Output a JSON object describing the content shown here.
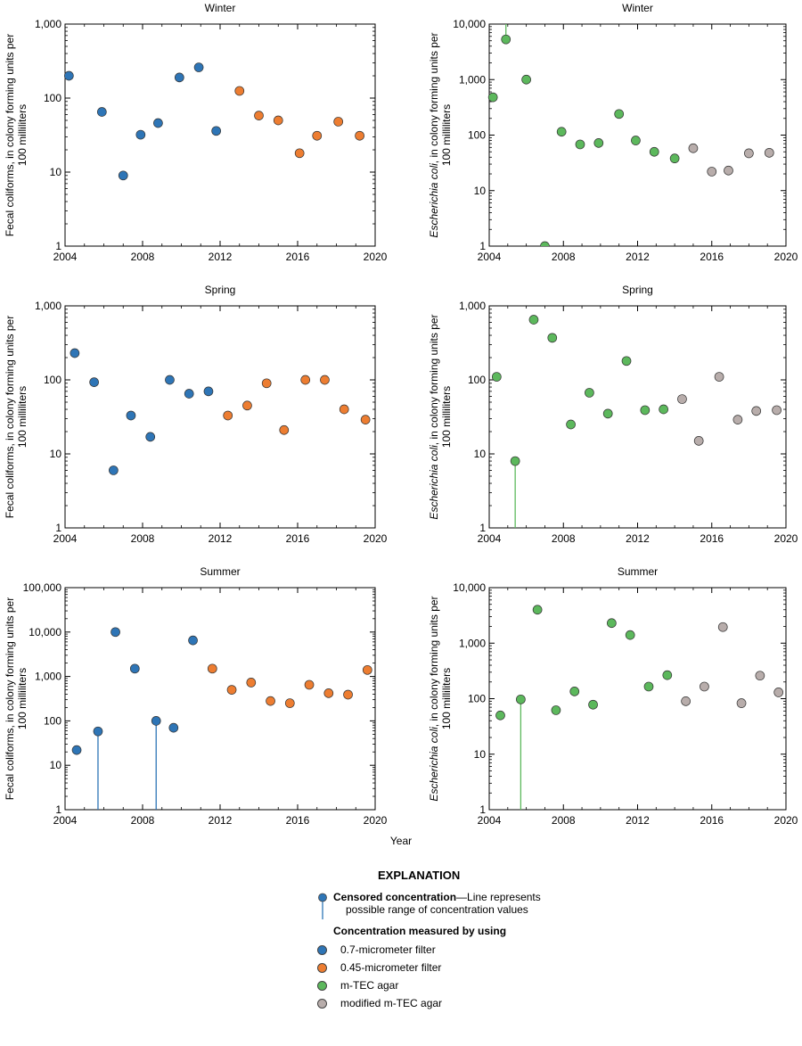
{
  "figure": {
    "x_axis_title": "Year",
    "explanation": {
      "title": "EXPLANATION",
      "censored_bold": "Censored concentration",
      "censored_text_1": "—Line represents",
      "censored_text_2": "possible range of concentration values",
      "measured_heading": "Concentration measured by using",
      "legend_items": [
        {
          "label": "0.7-micrometer filter",
          "color": "#2e75b6"
        },
        {
          "label": "0.45-micrometer filter",
          "color": "#ed7d31"
        },
        {
          "label": "m-TEC agar",
          "color": "#5cb85c"
        },
        {
          "label": "modified m-TEC agar",
          "color": "#b8adab"
        }
      ]
    }
  },
  "colors": {
    "filter_07": "#2e75b6",
    "filter_045": "#ed7d31",
    "mtec": "#5cb85c",
    "modified_mtec": "#b8adab"
  },
  "chart_data": [
    {
      "type": "scatter",
      "title": "Winter",
      "scale": "log",
      "ylabel": "Fecal coliforms, in colony forming units per 100 milliliters",
      "xlim": [
        2004,
        2020
      ],
      "ylim": [
        1,
        1000
      ],
      "xticks": [
        "2004",
        "2008",
        "2012",
        "2016",
        "2020"
      ],
      "yticks": [
        "1",
        "10",
        "100",
        "1,000"
      ],
      "series": [
        {
          "method": "0.7-micrometer filter",
          "color": "#2e75b6",
          "points": [
            [
              2004.2,
              200
            ],
            [
              2005.9,
              65
            ],
            [
              2007.0,
              9
            ],
            [
              2007.9,
              32
            ],
            [
              2008.8,
              46
            ],
            [
              2009.9,
              190
            ],
            [
              2010.9,
              260
            ],
            [
              2011.8,
              36
            ]
          ]
        },
        {
          "method": "0.45-micrometer filter",
          "color": "#ed7d31",
          "points": [
            [
              2013.0,
              125
            ],
            [
              2014.0,
              58
            ],
            [
              2015.0,
              50
            ],
            [
              2016.1,
              18
            ],
            [
              2017.0,
              31
            ],
            [
              2018.1,
              48
            ],
            [
              2019.2,
              31
            ]
          ]
        }
      ],
      "censored": []
    },
    {
      "type": "scatter",
      "title": "Winter",
      "scale": "log",
      "ylabel_italic": "Escherichia coli",
      "ylabel": ", in colony forming units per 100 milliliters",
      "xlim": [
        2004,
        2020
      ],
      "ylim": [
        1,
        10000
      ],
      "xticks": [
        "2004",
        "2008",
        "2012",
        "2016",
        "2020"
      ],
      "yticks": [
        "1",
        "10",
        "100",
        "1,000",
        "10,000"
      ],
      "series": [
        {
          "method": "m-TEC agar",
          "color": "#5cb85c",
          "points": [
            [
              2004.2,
              480
            ],
            [
              2004.9,
              5300
            ],
            [
              2006.0,
              1000
            ],
            [
              2007.0,
              1
            ],
            [
              2007.9,
              115
            ],
            [
              2008.9,
              68
            ],
            [
              2009.9,
              72
            ],
            [
              2011.0,
              240
            ],
            [
              2011.9,
              80
            ],
            [
              2012.9,
              50
            ],
            [
              2014.0,
              38
            ]
          ]
        },
        {
          "method": "modified m-TEC agar",
          "color": "#b8adab",
          "points": [
            [
              2015.0,
              58
            ],
            [
              2016.0,
              22
            ],
            [
              2016.9,
              23
            ],
            [
              2018.0,
              47
            ],
            [
              2019.1,
              48
            ]
          ]
        }
      ],
      "censored": [
        [
          2004.9,
          5300,
          10000
        ]
      ]
    },
    {
      "type": "scatter",
      "title": "Spring",
      "scale": "log",
      "ylabel": "Fecal coliforms, in colony forming units per 100 milliliters",
      "xlim": [
        2004,
        2020
      ],
      "ylim": [
        1,
        1000
      ],
      "xticks": [
        "2004",
        "2008",
        "2012",
        "2016",
        "2020"
      ],
      "yticks": [
        "1",
        "10",
        "100",
        "1,000"
      ],
      "series": [
        {
          "method": "0.7-micrometer filter",
          "color": "#2e75b6",
          "points": [
            [
              2004.5,
              230
            ],
            [
              2005.5,
              93
            ],
            [
              2006.5,
              6
            ],
            [
              2007.4,
              33
            ],
            [
              2008.4,
              17
            ],
            [
              2009.4,
              100
            ],
            [
              2010.4,
              65
            ],
            [
              2011.4,
              70
            ]
          ]
        },
        {
          "method": "0.45-micrometer filter",
          "color": "#ed7d31",
          "points": [
            [
              2012.4,
              33
            ],
            [
              2013.4,
              45
            ],
            [
              2014.4,
              90
            ],
            [
              2015.3,
              21
            ],
            [
              2016.4,
              100
            ],
            [
              2017.4,
              100
            ],
            [
              2018.4,
              40
            ],
            [
              2019.5,
              29
            ]
          ]
        }
      ],
      "censored": []
    },
    {
      "type": "scatter",
      "title": "Spring",
      "scale": "log",
      "ylabel_italic": "Escherichia coli",
      "ylabel": ", in colony forming units per 100 milliliters",
      "xlim": [
        2004,
        2020
      ],
      "ylim": [
        1,
        1000
      ],
      "xticks": [
        "2004",
        "2008",
        "2012",
        "2016",
        "2020"
      ],
      "yticks": [
        "1",
        "10",
        "100",
        "1,000"
      ],
      "series": [
        {
          "method": "m-TEC agar",
          "color": "#5cb85c",
          "points": [
            [
              2004.4,
              110
            ],
            [
              2005.4,
              8
            ],
            [
              2006.4,
              650
            ],
            [
              2007.4,
              370
            ],
            [
              2008.4,
              25
            ],
            [
              2009.4,
              67
            ],
            [
              2010.4,
              35
            ],
            [
              2011.4,
              180
            ],
            [
              2012.4,
              39
            ],
            [
              2013.4,
              40
            ]
          ]
        },
        {
          "method": "modified m-TEC agar",
          "color": "#b8adab",
          "points": [
            [
              2014.4,
              55
            ],
            [
              2015.3,
              15
            ],
            [
              2016.4,
              110
            ],
            [
              2017.4,
              29
            ],
            [
              2018.4,
              38
            ],
            [
              2019.5,
              39
            ]
          ]
        }
      ],
      "censored": [
        [
          2005.4,
          1,
          8
        ]
      ]
    },
    {
      "type": "scatter",
      "title": "Summer",
      "scale": "log",
      "ylabel": "Fecal coliforms, in colony forming units per 100 milliliters",
      "xlim": [
        2004,
        2020
      ],
      "ylim": [
        1,
        100000
      ],
      "xticks": [
        "2004",
        "2008",
        "2012",
        "2016",
        "2020"
      ],
      "yticks": [
        "1",
        "10",
        "100",
        "1,000",
        "10,000",
        "100,000"
      ],
      "series": [
        {
          "method": "0.7-micrometer filter",
          "color": "#2e75b6",
          "points": [
            [
              2004.6,
              22
            ],
            [
              2005.7,
              58
            ],
            [
              2006.6,
              10000
            ],
            [
              2007.6,
              1500
            ],
            [
              2008.7,
              100
            ],
            [
              2009.6,
              70
            ],
            [
              2010.6,
              6500
            ]
          ]
        },
        {
          "method": "0.45-micrometer filter",
          "color": "#ed7d31",
          "points": [
            [
              2011.6,
              1500
            ],
            [
              2012.6,
              500
            ],
            [
              2013.6,
              730
            ],
            [
              2014.6,
              280
            ],
            [
              2015.6,
              250
            ],
            [
              2016.6,
              650
            ],
            [
              2017.6,
              420
            ],
            [
              2018.6,
              390
            ],
            [
              2019.6,
              1400
            ]
          ]
        }
      ],
      "censored": [
        [
          2005.7,
          1,
          58
        ],
        [
          2008.7,
          1,
          100
        ]
      ]
    },
    {
      "type": "scatter",
      "title": "Summer",
      "scale": "log",
      "ylabel_italic": "Escherichia coli",
      "ylabel": ", in colony forming units per 100 milliliters",
      "xlim": [
        2004,
        2020
      ],
      "ylim": [
        1,
        10000
      ],
      "xticks": [
        "2004",
        "2008",
        "2012",
        "2016",
        "2020"
      ],
      "yticks": [
        "1",
        "10",
        "100",
        "1,000",
        "10,000"
      ],
      "series": [
        {
          "method": "m-TEC agar",
          "color": "#5cb85c",
          "points": [
            [
              2004.6,
              50
            ],
            [
              2005.7,
              97
            ],
            [
              2006.6,
              4000
            ],
            [
              2007.6,
              62
            ],
            [
              2008.6,
              135
            ],
            [
              2009.6,
              78
            ],
            [
              2010.6,
              2300
            ],
            [
              2011.6,
              1400
            ],
            [
              2012.6,
              165
            ],
            [
              2013.6,
              265
            ]
          ]
        },
        {
          "method": "modified m-TEC agar",
          "color": "#b8adab",
          "points": [
            [
              2014.6,
              90
            ],
            [
              2015.6,
              165
            ],
            [
              2016.6,
              1950
            ],
            [
              2017.6,
              83
            ],
            [
              2018.6,
              260
            ],
            [
              2019.6,
              130
            ]
          ]
        }
      ],
      "censored": [
        [
          2005.7,
          1,
          97
        ]
      ]
    }
  ]
}
